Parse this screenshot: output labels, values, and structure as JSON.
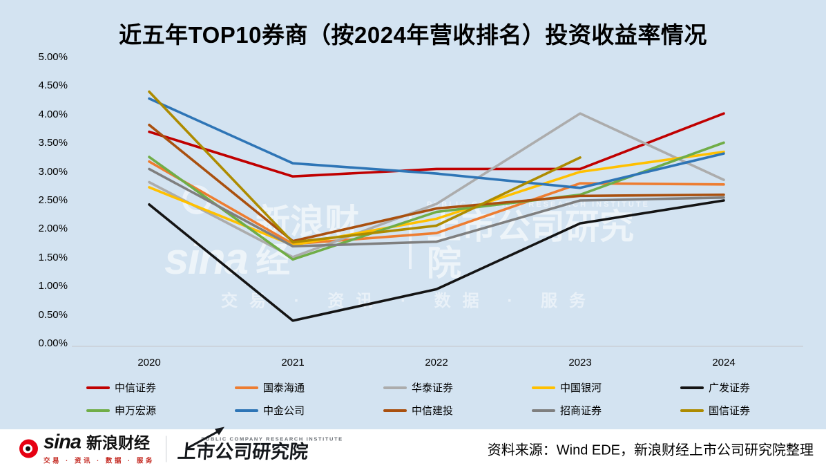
{
  "title": "近五年TOP10券商（按2024年营收排名）投资收益率情况",
  "chart_data": {
    "type": "line",
    "unit": "percent",
    "categories": [
      "2020",
      "2021",
      "2022",
      "2023",
      "2024"
    ],
    "series": [
      {
        "name": "中信证券",
        "color": "#C00000",
        "values": [
          3.7,
          2.92,
          3.05,
          3.05,
          4.02
        ]
      },
      {
        "name": "国泰海通",
        "color": "#ED7D31",
        "values": [
          3.18,
          1.74,
          1.93,
          2.8,
          2.78
        ]
      },
      {
        "name": "华泰证券",
        "color": "#ACACAC",
        "values": [
          2.82,
          1.51,
          2.44,
          4.02,
          2.86
        ]
      },
      {
        "name": "中国银河",
        "color": "#FFC000",
        "values": [
          2.73,
          1.72,
          2.18,
          3.0,
          3.35
        ]
      },
      {
        "name": "广发证券",
        "color": "#141414",
        "values": [
          2.43,
          0.4,
          0.95,
          2.1,
          2.5
        ]
      },
      {
        "name": "申万宏源",
        "color": "#70AD47",
        "values": [
          3.26,
          1.47,
          2.3,
          2.6,
          3.51
        ]
      },
      {
        "name": "中金公司",
        "color": "#2E75B6",
        "values": [
          4.28,
          3.15,
          2.97,
          2.72,
          3.32
        ]
      },
      {
        "name": "中信建投",
        "color": "#A9500F",
        "values": [
          3.82,
          1.79,
          2.36,
          2.58,
          2.6
        ]
      },
      {
        "name": "招商证券",
        "color": "#7F7F7F",
        "values": [
          3.05,
          1.7,
          1.78,
          2.5,
          2.55
        ]
      },
      {
        "name": "国信证券",
        "color": "#AD8B00",
        "values": [
          4.4,
          1.77,
          2.06,
          3.25,
          null
        ]
      }
    ],
    "y_ticks": [
      "5.00%",
      "4.50%",
      "4.00%",
      "3.50%",
      "3.00%",
      "2.50%",
      "2.00%",
      "1.50%",
      "1.00%",
      "0.50%",
      "0.00%"
    ],
    "ylim": [
      0,
      5
    ],
    "xlabel": "",
    "ylabel": "",
    "grid": false,
    "legend_position": "bottom"
  },
  "watermark": {
    "brand_script": "sina",
    "brand_cn": "新浪财经",
    "tagline": "交易 · 资讯 · 数据 · 服务",
    "institute_en": "PUBLIC COMPANY RESEARCH INSTITUTE",
    "institute_cn": "上市公司研究院"
  },
  "footer": {
    "brand_script": "sina",
    "brand_cn": "新浪财经",
    "tagline": "交易 · 资讯 · 数据 · 服务",
    "institute_en": "PUBLIC COMPANY RESEARCH INSTITUTE",
    "institute_cn": "上市公司研究院",
    "source": "资料来源：Wind EDE，新浪财经上市公司研究院整理"
  },
  "colors": {
    "background": "#D3E3F1",
    "footer_background": "#FFFFFF",
    "axis_line": "#C7CCD1",
    "sina_red": "#E60012"
  }
}
